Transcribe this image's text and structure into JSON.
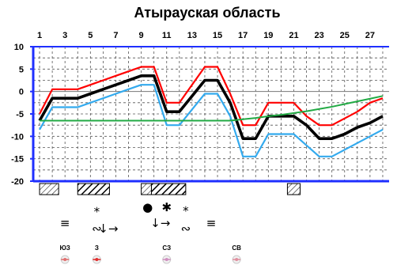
{
  "chart_data": {
    "type": "line",
    "title": "Атырауская область",
    "x_ticks": [
      "1",
      "3",
      "5",
      "7",
      "9",
      "11",
      "13",
      "15",
      "17",
      "19",
      "21",
      "23",
      "25",
      "27"
    ],
    "y_ticks": [
      "10",
      "5",
      "0",
      "-5",
      "-10",
      "-15",
      "-20"
    ],
    "xlim": [
      0.5,
      28.5
    ],
    "ylim": [
      -20,
      10
    ],
    "grid": true,
    "x": [
      1,
      2,
      3,
      4,
      5,
      6,
      7,
      8,
      9,
      10,
      11,
      12,
      13,
      14,
      15,
      16,
      17,
      18,
      19,
      20,
      21,
      22,
      23,
      24,
      25,
      26,
      27,
      28
    ],
    "series": [
      {
        "color": "#ff0000",
        "values": [
          -5,
          0.5,
          0.5,
          0.5,
          1.5,
          2.5,
          3.5,
          4.5,
          5.5,
          5.5,
          -2.5,
          -2.5,
          1.5,
          5.5,
          5.5,
          -0.5,
          -7.5,
          -7.5,
          -2.5,
          -2.5,
          -2.5,
          -5.5,
          -7.5,
          -7.5,
          -6,
          -4.5,
          -2.5,
          -1.5
        ]
      },
      {
        "color": "#000000",
        "values": [
          -6.5,
          -1.5,
          -1.5,
          -1.5,
          -0.5,
          0.5,
          1.5,
          2.5,
          3.5,
          3.5,
          -4.5,
          -4.5,
          -1,
          2.5,
          2.5,
          -2.5,
          -10.5,
          -10.5,
          -5.5,
          -5.5,
          -5.5,
          -7.5,
          -10.5,
          -10.5,
          -9.5,
          -8,
          -7,
          -5.5
        ]
      },
      {
        "color": "#33aaee",
        "values": [
          -8.5,
          -3.5,
          -3.5,
          -3.5,
          -2.5,
          -1.5,
          -0.5,
          0.5,
          1.5,
          1.5,
          -7.5,
          -7.5,
          -4,
          -0.5,
          -0.5,
          -5.5,
          -14.5,
          -14.5,
          -9.5,
          -9.5,
          -9.5,
          -12,
          -14.5,
          -14.5,
          -13,
          -11.5,
          -10,
          -8.5
        ]
      },
      {
        "color": "#22aa44",
        "values": [
          -6.5,
          -6.5,
          -6.5,
          -6.5,
          -6.5,
          -6.5,
          -6.5,
          -6.5,
          -6.5,
          -6.5,
          -6.5,
          -6.5,
          -6.5,
          -6.5,
          -6.5,
          -6.5,
          -6.2,
          -5.9,
          -5.5,
          -5.2,
          -4.8,
          -4.4,
          -3.9,
          -3.4,
          -2.8,
          -2.2,
          -1.6,
          -1
        ]
      }
    ]
  },
  "precipitation_blocks": [
    {
      "from": 1,
      "to": 2.5,
      "pattern": "light-hatch"
    },
    {
      "from": 4,
      "to": 6.5,
      "pattern": "heavy-hatch"
    },
    {
      "from": 9,
      "to": 9.8,
      "pattern": "light-hatch"
    },
    {
      "from": 9.8,
      "to": 12.5,
      "pattern": "heavy-hatch"
    },
    {
      "from": 20.5,
      "to": 21.5,
      "pattern": "light-hatch"
    }
  ],
  "weather_symbols": [
    {
      "day": 5.5,
      "row": 1,
      "symbol": "⁎"
    },
    {
      "day": 9.5,
      "row": 2,
      "symbol": "●"
    },
    {
      "day": 11,
      "row": 2,
      "symbol": "✱"
    },
    {
      "day": 12.5,
      "row": 2,
      "symbol": "⁎"
    },
    {
      "day": 3,
      "row": 3,
      "symbol": "≡"
    },
    {
      "day": 5.5,
      "row": 4,
      "symbol": "∾"
    },
    {
      "day": 6.4,
      "row": 4,
      "symbol": "↓→"
    },
    {
      "day": 10.5,
      "row": 3,
      "symbol": "↓→"
    },
    {
      "day": 12.5,
      "row": 4,
      "symbol": "∾"
    },
    {
      "day": 14.5,
      "row": 3,
      "symbol": "≡"
    }
  ],
  "wind": [
    {
      "day": 3,
      "label": "ЮЗ",
      "color": "#e07070"
    },
    {
      "day": 5.5,
      "label": "З",
      "color": "#e03030"
    },
    {
      "day": 11,
      "label": "СЗ",
      "color": "#d090c0"
    },
    {
      "day": 16.5,
      "label": "СВ",
      "color": "#e090a0"
    }
  ]
}
